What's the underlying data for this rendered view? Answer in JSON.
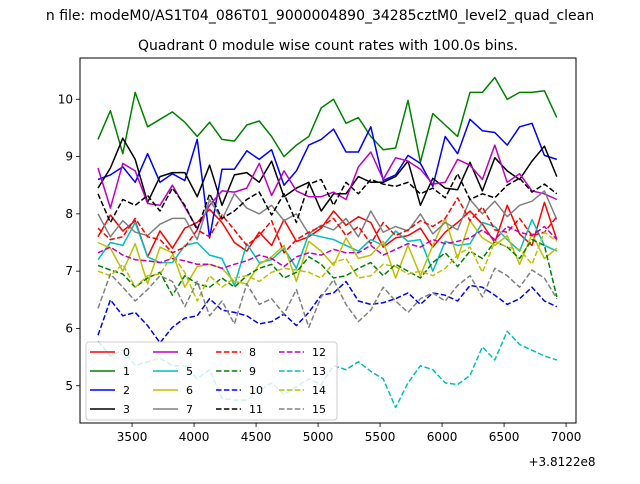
{
  "figure": {
    "suptitle": "n file: modeM0/AS1T04_086T01_9000004890_34285cztM0_level2_quad_clean",
    "title": "Quadrant 0 module wise count rates with 100.0s bins.",
    "offset_label": "+3.8122e8"
  },
  "chart_data": {
    "type": "line",
    "title": "Quadrant 0 module wise count rates with 100.0s bins.",
    "xlabel": "",
    "ylabel": "",
    "x_offset": 381220000,
    "xlim": [
      3080,
      7080
    ],
    "ylim": [
      4.35,
      10.72
    ],
    "x_ticks": [
      3500,
      4000,
      4500,
      5000,
      5500,
      6000,
      6500,
      7000
    ],
    "x_tick_labels": [
      "3500",
      "4000",
      "4500",
      "5000",
      "5500",
      "6000",
      "6500",
      "7000"
    ],
    "y_ticks": [
      5,
      6,
      7,
      8,
      9,
      10
    ],
    "y_tick_labels": [
      "5",
      "6",
      "7",
      "8",
      "9",
      "10"
    ],
    "grid": false,
    "legend_position": "lower-left",
    "x": [
      3225,
      3325,
      3425,
      3525,
      3625,
      3725,
      3825,
      3925,
      4025,
      4125,
      4225,
      4325,
      4425,
      4525,
      4625,
      4725,
      4825,
      4925,
      5025,
      5125,
      5225,
      5325,
      5425,
      5525,
      5625,
      5725,
      5825,
      5925,
      6025,
      6125,
      6225,
      6325,
      6425,
      6525,
      6625,
      6725,
      6825,
      6925
    ],
    "series": [
      {
        "name": "0",
        "color": "#ff0000",
        "dash": "solid",
        "values": [
          7.6,
          7.98,
          7.7,
          7.88,
          7.25,
          7.7,
          7.4,
          7.75,
          7.85,
          8.08,
          7.85,
          7.5,
          7.35,
          7.68,
          7.45,
          7.9,
          7.52,
          7.6,
          7.75,
          8.05,
          7.8,
          7.95,
          7.85,
          7.42,
          7.58,
          7.62,
          7.75,
          7.42,
          7.68,
          7.85,
          8.05,
          7.82,
          7.5,
          8.15,
          7.65,
          7.45,
          8.2,
          7.55
        ]
      },
      {
        "name": "1",
        "color": "#008000",
        "dash": "solid",
        "values": [
          9.3,
          9.8,
          9.05,
          10.12,
          9.52,
          9.65,
          9.78,
          9.6,
          9.35,
          9.6,
          9.3,
          9.27,
          9.55,
          9.62,
          9.35,
          9.0,
          9.2,
          9.35,
          9.85,
          10.0,
          9.58,
          9.68,
          9.35,
          9.12,
          9.15,
          9.98,
          8.9,
          9.75,
          9.55,
          9.35,
          10.12,
          10.12,
          10.38,
          10.0,
          10.12,
          10.12,
          10.15,
          9.68
        ]
      },
      {
        "name": "2",
        "color": "#0000ff",
        "dash": "solid",
        "values": [
          8.6,
          8.68,
          8.82,
          8.55,
          9.05,
          8.55,
          8.7,
          8.58,
          9.3,
          7.58,
          8.78,
          8.78,
          9.1,
          8.95,
          9.12,
          8.5,
          8.75,
          9.2,
          9.3,
          9.48,
          9.08,
          9.08,
          9.52,
          8.58,
          8.68,
          9.02,
          8.88,
          8.48,
          9.35,
          9.05,
          9.65,
          9.45,
          9.42,
          9.2,
          9.52,
          9.58,
          9.02,
          8.95
        ]
      },
      {
        "name": "3",
        "color": "#000000",
        "dash": "solid",
        "values": [
          8.45,
          8.8,
          9.32,
          8.95,
          8.2,
          8.65,
          8.72,
          8.72,
          8.3,
          8.85,
          8.15,
          8.68,
          8.72,
          8.55,
          8.92,
          8.3,
          8.45,
          8.55,
          8.05,
          8.35,
          8.35,
          8.65,
          8.55,
          8.55,
          8.65,
          8.92,
          8.15,
          8.62,
          8.45,
          8.42,
          8.9,
          8.4,
          8.98,
          8.75,
          8.6,
          8.92,
          9.18,
          8.65
        ]
      },
      {
        "name": "4",
        "color": "#bf00bf",
        "dash": "solid",
        "values": [
          8.8,
          8.1,
          8.88,
          8.75,
          8.18,
          8.15,
          8.5,
          8.12,
          7.75,
          8.15,
          8.4,
          8.38,
          8.45,
          8.88,
          8.32,
          8.75,
          8.4,
          8.3,
          8.3,
          8.38,
          8.25,
          8.82,
          9.08,
          8.6,
          8.98,
          8.92,
          8.78,
          8.52,
          8.55,
          8.95,
          8.85,
          8.6,
          9.2,
          8.55,
          8.7,
          8.4,
          8.35,
          8.25
        ]
      },
      {
        "name": "5",
        "color": "#00bfbf",
        "dash": "solid",
        "values": [
          7.2,
          7.5,
          7.45,
          7.85,
          7.25,
          7.15,
          7.15,
          7.45,
          7.5,
          7.28,
          7.22,
          6.75,
          7.48,
          7.15,
          7.2,
          7.4,
          7.05,
          7.65,
          7.6,
          7.55,
          7.45,
          7.35,
          7.55,
          7.45,
          7.7,
          7.52,
          7.55,
          7.0,
          7.52,
          7.45,
          7.48,
          7.85,
          7.78,
          7.55,
          7.35,
          7.9,
          7.45,
          7.35
        ]
      },
      {
        "name": "6",
        "color": "#bfbf00",
        "dash": "solid",
        "values": [
          7.5,
          7.4,
          7.0,
          7.48,
          6.78,
          7.42,
          7.32,
          6.72,
          7.08,
          7.12,
          7.05,
          6.82,
          6.78,
          7.12,
          7.25,
          7.45,
          6.82,
          7.52,
          7.35,
          7.1,
          7.58,
          7.22,
          7.28,
          7.52,
          6.88,
          7.45,
          6.92,
          7.45,
          7.92,
          7.22,
          7.88,
          7.58,
          7.45,
          7.62,
          7.12,
          7.65,
          7.22,
          7.4
        ]
      },
      {
        "name": "7",
        "color": "#808080",
        "dash": "solid",
        "values": [
          8.0,
          7.6,
          7.88,
          7.68,
          7.62,
          7.82,
          7.92,
          7.92,
          7.55,
          8.25,
          7.9,
          8.35,
          8.1,
          8.0,
          8.15,
          7.88,
          8.0,
          7.65,
          7.8,
          7.72,
          7.92,
          7.6,
          8.05,
          7.68,
          7.78,
          7.7,
          8.0,
          7.65,
          7.85,
          7.72,
          8.25,
          8.0,
          8.22,
          7.95,
          8.15,
          8.22,
          8.4,
          7.9
        ]
      },
      {
        "name": "8",
        "color": "#ff0000",
        "dash": "dashed",
        "values": [
          7.75,
          7.55,
          7.6,
          7.92,
          7.6,
          7.55,
          7.32,
          7.42,
          7.72,
          7.6,
          7.98,
          7.72,
          7.45,
          7.62,
          7.88,
          7.32,
          7.55,
          7.68,
          7.78,
          7.92,
          7.62,
          7.78,
          7.48,
          7.85,
          7.62,
          7.72,
          7.88,
          7.78,
          7.92,
          8.28,
          7.88,
          8.12,
          7.72,
          7.68,
          7.92,
          7.62,
          7.68,
          7.95
        ]
      },
      {
        "name": "9",
        "color": "#008000",
        "dash": "dashed",
        "values": [
          7.1,
          7.02,
          6.95,
          6.72,
          6.88,
          6.98,
          6.58,
          6.92,
          6.78,
          6.72,
          6.88,
          6.72,
          6.92,
          7.05,
          7.12,
          6.88,
          6.98,
          7.25,
          7.12,
          6.88,
          6.92,
          7.05,
          7.15,
          6.92,
          7.12,
          7.0,
          6.88,
          7.15,
          7.32,
          7.08,
          7.35,
          7.22,
          7.52,
          7.42,
          7.22,
          7.55,
          7.45,
          6.55
        ]
      },
      {
        "name": "10",
        "color": "#0000ff",
        "dash": "dashed",
        "values": [
          5.88,
          6.5,
          6.22,
          6.28,
          6.05,
          5.75,
          6.02,
          6.18,
          6.22,
          6.52,
          6.32,
          6.28,
          6.22,
          6.08,
          6.12,
          6.25,
          6.05,
          6.28,
          6.58,
          6.62,
          6.82,
          6.48,
          6.42,
          6.45,
          6.52,
          6.62,
          6.42,
          6.62,
          6.58,
          6.48,
          6.75,
          6.72,
          6.58,
          6.42,
          6.52,
          6.72,
          6.48,
          6.38
        ]
      },
      {
        "name": "11",
        "color": "#000000",
        "dash": "dashed",
        "values": [
          8.35,
          7.85,
          8.25,
          8.15,
          8.32,
          8.05,
          8.45,
          8.15,
          7.72,
          8.35,
          7.92,
          8.05,
          8.25,
          8.38,
          7.98,
          8.35,
          7.85,
          8.52,
          8.6,
          8.15,
          8.55,
          8.35,
          8.6,
          8.52,
          8.48,
          8.55,
          8.35,
          8.45,
          8.28,
          8.7,
          8.25,
          8.35,
          8.28,
          8.5,
          8.62,
          8.38,
          8.52,
          8.35
        ]
      },
      {
        "name": "12",
        "color": "#bf00bf",
        "dash": "dashed",
        "values": [
          7.32,
          7.42,
          7.28,
          7.2,
          7.18,
          7.15,
          7.22,
          7.18,
          7.12,
          7.12,
          7.05,
          7.12,
          7.18,
          7.28,
          7.22,
          7.08,
          7.25,
          7.32,
          7.28,
          7.38,
          7.32,
          7.32,
          7.45,
          7.28,
          7.38,
          7.48,
          7.42,
          7.55,
          7.48,
          7.52,
          7.58,
          7.72,
          7.55,
          7.78,
          7.68,
          7.62,
          7.78,
          7.55
        ]
      },
      {
        "name": "13",
        "color": "#00bfbf",
        "dash": "dashed",
        "values": [
          5.78,
          5.52,
          5.62,
          5.35,
          5.42,
          5.48,
          5.35,
          5.35,
          5.12,
          5.28,
          4.78,
          4.75,
          4.75,
          4.92,
          5.05,
          4.85,
          4.98,
          5.12,
          5.02,
          5.35,
          5.28,
          5.42,
          5.25,
          5.12,
          4.62,
          5.05,
          5.35,
          5.28,
          5.05,
          5.02,
          5.18,
          5.68,
          5.45,
          5.95,
          5.72,
          5.62,
          5.52,
          5.45
        ]
      },
      {
        "name": "14",
        "color": "#bfbf00",
        "dash": "dashed",
        "values": [
          7.0,
          6.92,
          7.12,
          6.72,
          6.92,
          6.95,
          7.28,
          6.98,
          6.48,
          6.92,
          6.72,
          6.88,
          6.92,
          6.82,
          6.98,
          7.05,
          7.02,
          6.98,
          6.88,
          7.15,
          7.22,
          6.88,
          6.92,
          7.12,
          7.08,
          6.95,
          7.0,
          6.92,
          7.05,
          7.28,
          7.42,
          6.98,
          7.52,
          7.42,
          7.38,
          7.12,
          7.68,
          7.52
        ]
      },
      {
        "name": "15",
        "color": "#808080",
        "dash": "dashed",
        "values": [
          6.35,
          6.95,
          6.72,
          6.48,
          6.68,
          6.92,
          6.82,
          6.38,
          6.82,
          6.22,
          6.48,
          6.08,
          6.78,
          6.42,
          6.52,
          6.25,
          6.68,
          6.02,
          6.55,
          6.85,
          6.42,
          6.12,
          6.32,
          6.72,
          6.48,
          6.28,
          6.52,
          6.62,
          6.48,
          6.75,
          6.92,
          6.55,
          7.05,
          6.92,
          6.72,
          7.02,
          6.88,
          6.52
        ]
      }
    ]
  }
}
